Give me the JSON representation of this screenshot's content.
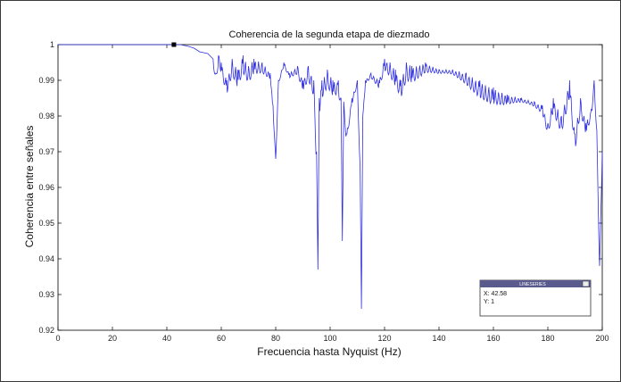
{
  "chart_data": {
    "type": "line",
    "title": "Coherencia de la segunda etapa de diezmado",
    "xlabel": "Frecuencia hasta Nyquist (Hz)",
    "ylabel": "Coherencia entre señales",
    "xlim": [
      0,
      200
    ],
    "ylim": [
      0.92,
      1
    ],
    "x_ticks": [
      "0",
      "20",
      "40",
      "60",
      "80",
      "100",
      "120",
      "140",
      "160",
      "180",
      "200"
    ],
    "y_ticks": [
      "0.92",
      "0.93",
      "0.94",
      "0.95",
      "0.96",
      "0.97",
      "0.98",
      "0.99",
      "1"
    ],
    "grid": false,
    "legend": "none",
    "series": [
      {
        "color": "#3030e0",
        "x": [
          0,
          40,
          45,
          48,
          50,
          52,
          55,
          57,
          58,
          59,
          60,
          62,
          64,
          66,
          68,
          70,
          72,
          75,
          78,
          79,
          80,
          81,
          83,
          85,
          88,
          90,
          92,
          94,
          95,
          95.5,
          96,
          97,
          99,
          101,
          103,
          104,
          104.5,
          105,
          106,
          108,
          110,
          111,
          111.5,
          112,
          113,
          115,
          118,
          120,
          122,
          124,
          126,
          128,
          130,
          135,
          140,
          145,
          150,
          155,
          160,
          165,
          170,
          175,
          178,
          180,
          182,
          185,
          188,
          190,
          192,
          194,
          196,
          197,
          198,
          199,
          200
        ],
        "y": [
          1,
          1,
          1,
          0.9995,
          0.999,
          0.998,
          0.9975,
          0.996,
          0.992,
          0.997,
          0.995,
          0.99,
          0.996,
          0.993,
          0.997,
          0.994,
          0.996,
          0.995,
          0.992,
          0.983,
          0.968,
          0.99,
          0.995,
          0.992,
          0.994,
          0.99,
          0.994,
          0.99,
          0.97,
          0.937,
          0.985,
          0.99,
          0.993,
          0.99,
          0.99,
          0.985,
          0.945,
          0.984,
          0.975,
          0.985,
          0.99,
          0.966,
          0.926,
          0.98,
          0.99,
          0.992,
          0.99,
          0.996,
          0.995,
          0.993,
          0.99,
          0.995,
          0.994,
          0.995,
          0.993,
          0.993,
          0.992,
          0.99,
          0.988,
          0.986,
          0.985,
          0.984,
          0.983,
          0.978,
          0.985,
          0.98,
          0.99,
          0.975,
          0.985,
          0.978,
          0.982,
          0.99,
          0.976,
          0.938,
          0.97
        ]
      }
    ],
    "oscillation_ranges": [
      [
        56,
        200
      ]
    ],
    "datatip": {
      "header": "LINESERIES",
      "x_label": "X: 42.58",
      "y_label": "Y: 1",
      "x": 42.58,
      "y": 1
    }
  }
}
